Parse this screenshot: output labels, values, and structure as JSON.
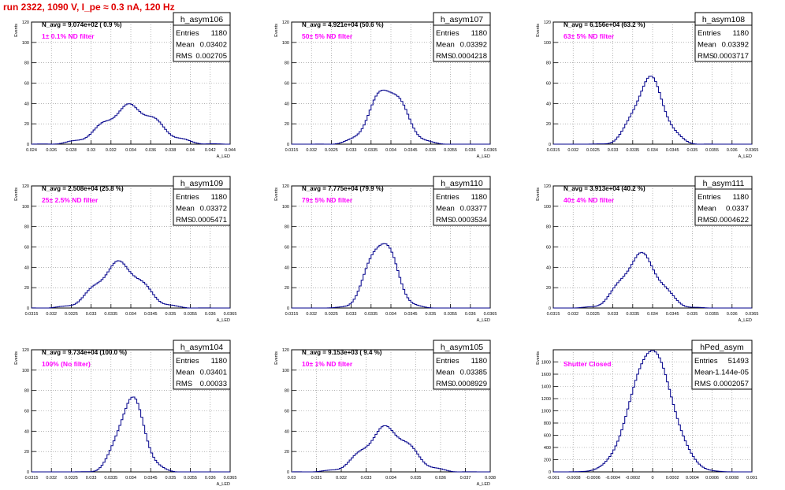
{
  "run_title": "run 2322,  1090 V, I_pe ≈ 0.3 nA, 120 Hz",
  "colors": {
    "histogram_line": "#00008b",
    "annotation_text": "#ff00ff",
    "title_text": "#e00000",
    "grid": "#888888"
  },
  "chart_data": [
    {
      "type": "histogram",
      "name": "h_asym106",
      "navg": "N_avg = 9.074e+02 ( 0.9 %)",
      "label": "1± 0.1% ND filter",
      "stats": [
        [
          "Entries",
          "1180"
        ],
        [
          "Mean",
          "0.03402"
        ],
        [
          "RMS",
          "0.002705"
        ]
      ],
      "ylabel": "Events",
      "xlabel": "A_LED",
      "xlim": [
        0.0235,
        0.0445
      ],
      "ylim": [
        0,
        120
      ],
      "xticks": [
        "0.024",
        "0.026",
        "0.028",
        "0.03",
        "0.032",
        "0.034",
        "0.036",
        "0.038",
        "0.04",
        "0.042",
        "0.044"
      ],
      "yticks": [
        "0",
        "20",
        "40",
        "60",
        "80",
        "100",
        "120"
      ],
      "mean": 0.03402,
      "rms": 0.002705,
      "entries": 1180
    },
    {
      "type": "histogram",
      "name": "h_asym107",
      "navg": "N_avg = 4.921e+04 (50.6 %)",
      "label": "50± 5% ND filter",
      "stats": [
        [
          "Entries",
          "1180"
        ],
        [
          "Mean",
          "0.03392"
        ],
        [
          "RMS",
          "0.0004218"
        ]
      ],
      "ylabel": "Events",
      "xlabel": "A_LED",
      "xlim": [
        0.0315,
        0.0365
      ],
      "ylim": [
        0,
        120
      ],
      "xticks": [
        "0.0315",
        "0.032",
        "0.0325",
        "0.033",
        "0.0335",
        "0.034",
        "0.0345",
        "0.035",
        "0.0355",
        "0.036",
        "0.0365"
      ],
      "yticks": [
        "0",
        "20",
        "40",
        "60",
        "80",
        "100",
        "120"
      ],
      "mean": 0.03392,
      "rms": 0.0004218,
      "entries": 1180
    },
    {
      "type": "histogram",
      "name": "h_asym108",
      "navg": "N_avg = 6.156e+04 (63.2 %)",
      "label": "63± 5% ND filter",
      "stats": [
        [
          "Entries",
          "1180"
        ],
        [
          "Mean",
          "0.03392"
        ],
        [
          "RMS",
          "0.0003717"
        ]
      ],
      "ylabel": "Events",
      "xlabel": "A_LED",
      "xlim": [
        0.0315,
        0.0365
      ],
      "ylim": [
        0,
        120
      ],
      "xticks": [
        "0.0315",
        "0.032",
        "0.0325",
        "0.033",
        "0.0335",
        "0.034",
        "0.0345",
        "0.035",
        "0.0355",
        "0.036",
        "0.0365"
      ],
      "yticks": [
        "0",
        "20",
        "40",
        "60",
        "80",
        "100",
        "120"
      ],
      "mean": 0.03392,
      "rms": 0.0003717,
      "entries": 1180
    },
    {
      "type": "histogram",
      "name": "h_asym109",
      "navg": "N_avg = 2.508e+04 (25.8 %)",
      "label": "25± 2.5% ND filter",
      "stats": [
        [
          "Entries",
          "1180"
        ],
        [
          "Mean",
          "0.03372"
        ],
        [
          "RMS",
          "0.0005471"
        ]
      ],
      "ylabel": "Events",
      "xlabel": "A_LED",
      "xlim": [
        0.0315,
        0.0365
      ],
      "ylim": [
        0,
        120
      ],
      "xticks": [
        "0.0315",
        "0.032",
        "0.0325",
        "0.033",
        "0.0335",
        "0.034",
        "0.0345",
        "0.035",
        "0.0355",
        "0.036",
        "0.0365"
      ],
      "yticks": [
        "0",
        "20",
        "40",
        "60",
        "80",
        "100",
        "120"
      ],
      "mean": 0.03372,
      "rms": 0.0005471,
      "entries": 1180
    },
    {
      "type": "histogram",
      "name": "h_asym110",
      "navg": "N_avg = 7.775e+04 (79.9 %)",
      "label": "79± 5% ND filter",
      "stats": [
        [
          "Entries",
          "1180"
        ],
        [
          "Mean",
          "0.03377"
        ],
        [
          "RMS",
          "0.0003534"
        ]
      ],
      "ylabel": "Events",
      "xlabel": "A_LED",
      "xlim": [
        0.0315,
        0.0365
      ],
      "ylim": [
        0,
        120
      ],
      "xticks": [
        "0.0315",
        "0.032",
        "0.0325",
        "0.033",
        "0.0335",
        "0.034",
        "0.0345",
        "0.035",
        "0.0355",
        "0.036",
        "0.0365"
      ],
      "yticks": [
        "0",
        "20",
        "40",
        "60",
        "80",
        "100",
        "120"
      ],
      "mean": 0.03377,
      "rms": 0.0003534,
      "entries": 1180
    },
    {
      "type": "histogram",
      "name": "h_asym111",
      "navg": "N_avg = 3.913e+04 (40.2 %)",
      "label": "40± 4% ND filter",
      "stats": [
        [
          "Entries",
          "1180"
        ],
        [
          "Mean",
          "0.0337"
        ],
        [
          "RMS",
          "0.0004622"
        ]
      ],
      "ylabel": "Events",
      "xlabel": "A_LED",
      "xlim": [
        0.0315,
        0.0365
      ],
      "ylim": [
        0,
        120
      ],
      "xticks": [
        "0.0315",
        "0.032",
        "0.0325",
        "0.033",
        "0.0335",
        "0.034",
        "0.0345",
        "0.035",
        "0.0355",
        "0.036",
        "0.0365"
      ],
      "yticks": [
        "0",
        "20",
        "40",
        "60",
        "80",
        "100",
        "120"
      ],
      "mean": 0.0337,
      "rms": 0.0004622,
      "entries": 1180
    },
    {
      "type": "histogram",
      "name": "h_asym104",
      "navg": "N_avg = 9.734e+04 (100.0 %)",
      "label": "100% (No filter)",
      "stats": [
        [
          "Entries",
          "1180"
        ],
        [
          "Mean",
          "0.03401"
        ],
        [
          "RMS",
          "0.00033"
        ]
      ],
      "ylabel": "Events",
      "xlabel": "A_LED",
      "xlim": [
        0.0315,
        0.0365
      ],
      "ylim": [
        0,
        120
      ],
      "xticks": [
        "0.0315",
        "0.032",
        "0.0325",
        "0.033",
        "0.0335",
        "0.034",
        "0.0345",
        "0.035",
        "0.0355",
        "0.036",
        "0.0365"
      ],
      "yticks": [
        "0",
        "20",
        "40",
        "60",
        "80",
        "100",
        "120"
      ],
      "mean": 0.03401,
      "rms": 0.00033,
      "entries": 1180
    },
    {
      "type": "histogram",
      "name": "h_asym105",
      "navg": "N_avg = 9.153e+03 ( 9.4 %)",
      "label": "10± 1% ND filter",
      "stats": [
        [
          "Entries",
          "1180"
        ],
        [
          "Mean",
          "0.03385"
        ],
        [
          "RMS",
          "0.0008929"
        ]
      ],
      "ylabel": "Events",
      "xlabel": "A_LED",
      "xlim": [
        0.03,
        0.038
      ],
      "ylim": [
        0,
        120
      ],
      "xticks": [
        "0.03",
        "0.031",
        "0.032",
        "0.033",
        "0.034",
        "0.035",
        "0.036",
        "0.037",
        "0.038"
      ],
      "yticks": [
        "0",
        "20",
        "40",
        "60",
        "80",
        "100",
        "120"
      ],
      "mean": 0.03385,
      "rms": 0.0008929,
      "entries": 1180
    },
    {
      "type": "histogram",
      "name": "hPed_asym",
      "navg": "",
      "label": "Shutter Closed",
      "stats": [
        [
          "Entries",
          "51493"
        ],
        [
          "Mean",
          "-1.144e-05"
        ],
        [
          "RMS",
          "0.0002057"
        ]
      ],
      "ylabel": "Events",
      "xlabel": "",
      "xlim": [
        -0.001,
        0.001
      ],
      "ylim": [
        0,
        2000
      ],
      "xticks": [
        "-0.001",
        "-0.0008",
        "-0.0006",
        "-0.0004",
        "-0.0002",
        "0",
        "0.0002",
        "0.0004",
        "0.0006",
        "0.0008",
        "0.001"
      ],
      "yticks": [
        "0",
        "200",
        "400",
        "600",
        "800",
        "1000",
        "1200",
        "1400",
        "1600",
        "1800"
      ],
      "mean": -1.144e-05,
      "rms": 0.0002057,
      "entries": 51493
    }
  ]
}
